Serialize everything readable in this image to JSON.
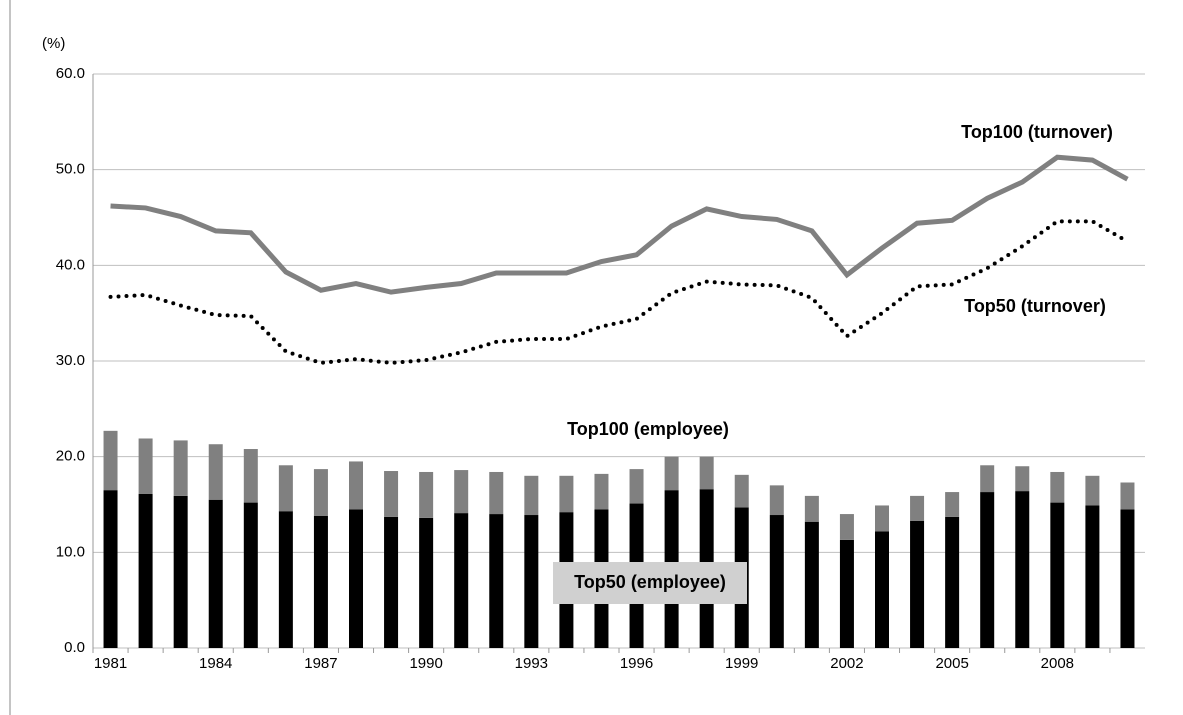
{
  "chart_data": {
    "type": "combo",
    "ylabel": "(%)",
    "categories": [
      "1981",
      null,
      null,
      "1984",
      null,
      null,
      "1987",
      null,
      null,
      "1990",
      null,
      null,
      "1993",
      null,
      null,
      "1996",
      null,
      null,
      "1999",
      null,
      null,
      "2002",
      null,
      null,
      "2005",
      null,
      null,
      "2008",
      null,
      null
    ],
    "series": [
      {
        "name": "Top50 (employee)",
        "kind": "bar",
        "color": "#000000",
        "values": [
          16.5,
          16.1,
          15.9,
          15.5,
          15.2,
          14.3,
          13.8,
          14.5,
          13.7,
          13.6,
          14.1,
          14.0,
          13.9,
          14.2,
          14.5,
          15.1,
          16.5,
          16.6,
          14.7,
          13.9,
          13.2,
          11.3,
          12.2,
          13.3,
          13.7,
          16.3,
          16.4,
          15.2,
          14.9,
          14.5
        ]
      },
      {
        "name": "Top100 (employee)",
        "kind": "bar",
        "color": "#808080",
        "values": [
          6.2,
          5.8,
          5.8,
          5.8,
          5.6,
          4.8,
          4.9,
          5.0,
          4.8,
          4.8,
          4.5,
          4.4,
          4.1,
          3.8,
          3.7,
          3.6,
          3.5,
          3.4,
          3.4,
          3.1,
          2.7,
          2.7,
          2.7,
          2.6,
          2.6,
          2.8,
          2.6,
          3.2,
          3.1,
          2.8
        ]
      },
      {
        "name": "Top100 (turnover)",
        "kind": "line",
        "style": "solid",
        "color": "#808080",
        "values": [
          46.2,
          46.0,
          45.1,
          43.6,
          43.4,
          39.3,
          37.4,
          38.1,
          37.2,
          37.7,
          38.1,
          39.2,
          39.2,
          39.2,
          40.4,
          41.1,
          44.1,
          45.9,
          45.1,
          44.8,
          43.6,
          39.0,
          41.8,
          44.4,
          44.7,
          47.0,
          48.7,
          51.3,
          51.0,
          49.0
        ]
      },
      {
        "name": "Top50 (turnover)",
        "kind": "line",
        "style": "dotted",
        "color": "#000000",
        "values": [
          36.7,
          36.9,
          35.8,
          34.8,
          34.7,
          31.0,
          29.8,
          30.2,
          29.8,
          30.1,
          30.9,
          32.0,
          32.3,
          32.3,
          33.6,
          34.4,
          37.1,
          38.3,
          38.0,
          37.9,
          36.6,
          32.6,
          35.0,
          37.8,
          38.0,
          39.7,
          42.0,
          44.6,
          44.6,
          42.5
        ]
      }
    ],
    "ylim": [
      0,
      60
    ],
    "yticks": [
      {
        "value": 0,
        "label": "0.0"
      },
      {
        "value": 10,
        "label": "10.0"
      },
      {
        "value": 20,
        "label": "20.0"
      },
      {
        "value": 30,
        "label": "30.0"
      },
      {
        "value": 40,
        "label": "40.0"
      },
      {
        "value": 50,
        "label": "50.0"
      },
      {
        "value": 60,
        "label": "60.0"
      }
    ],
    "grid": true
  }
}
